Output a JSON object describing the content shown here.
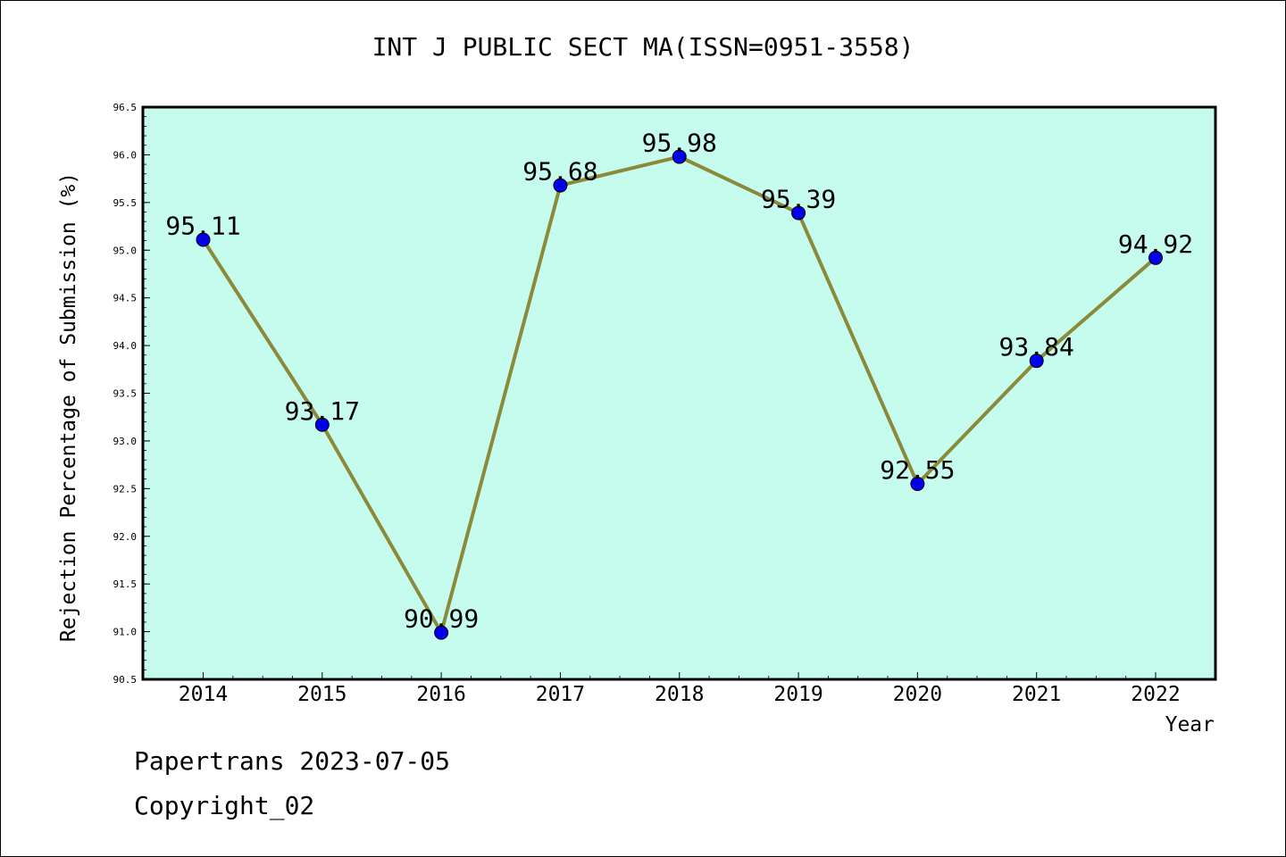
{
  "chart_data": {
    "type": "line",
    "title": "INT J PUBLIC SECT MA(ISSN=0951-3558)",
    "xlabel": "Year",
    "ylabel": "Rejection Percentage of Submission (%)",
    "x": [
      "2014",
      "2015",
      "2016",
      "2017",
      "2018",
      "2019",
      "2020",
      "2021",
      "2022"
    ],
    "series": [
      {
        "values": [
          95.11,
          93.17,
          90.99,
          95.68,
          95.98,
          95.39,
          92.55,
          93.84,
          94.92
        ],
        "labels": [
          "95.11",
          "93.17",
          "90.99",
          "95.68",
          "95.98",
          "95.39",
          "92.55",
          "93.84",
          "94.92"
        ]
      }
    ],
    "ylim": [
      90.5,
      96.5
    ],
    "yticks": [
      "90.5",
      "91.0",
      "91.5",
      "92.0",
      "92.5",
      "93.0",
      "93.5",
      "94.0",
      "94.5",
      "95.0",
      "95.5",
      "96.0",
      "96.5"
    ],
    "grid": false,
    "colors": {
      "plot_bg": "#c6fcee",
      "line": "#8a8a3a",
      "marker": "#0000ee"
    }
  },
  "footer": {
    "line1": "Papertrans 2023-07-05",
    "line2": "Copyright_02"
  }
}
